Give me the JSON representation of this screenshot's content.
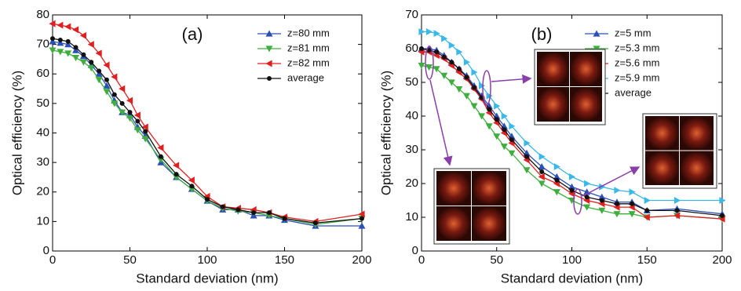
{
  "chart_data": [
    {
      "type": "line",
      "annotation": "(a)",
      "x_label": "Standard deviation (nm)",
      "y_label": "Optical efficiency (%)",
      "x": [
        0,
        5,
        10,
        15,
        20,
        25,
        30,
        35,
        40,
        45,
        50,
        55,
        60,
        70,
        80,
        90,
        100,
        110,
        120,
        130,
        140,
        150,
        170,
        200
      ],
      "xlim": [
        0,
        200
      ],
      "xticks": [
        0,
        50,
        100,
        150,
        200
      ],
      "ylim": [
        0,
        80
      ],
      "yticks": [
        0,
        10,
        20,
        30,
        40,
        50,
        60,
        70,
        80
      ],
      "legend": "upper right",
      "series": [
        {
          "name": "z=80 mm",
          "color": "#2a4fb8",
          "marker": "^",
          "values": [
            71,
            70.5,
            70,
            68,
            66,
            63,
            60,
            56,
            51,
            47,
            46,
            42,
            39,
            30,
            25,
            21,
            17,
            14,
            14,
            12,
            12,
            10.5,
            8.5,
            8.5
          ]
        },
        {
          "name": "z=81 mm",
          "color": "#3fae3f",
          "marker": "v",
          "values": [
            68,
            67.5,
            67,
            65.5,
            64,
            62,
            58,
            54,
            50,
            47,
            45,
            41,
            38,
            31,
            25,
            21,
            17,
            14.5,
            13.5,
            13,
            12,
            11,
            9,
            11
          ]
        },
        {
          "name": "z=82 mm",
          "color": "#e02020",
          "marker": "<",
          "values": [
            77,
            76.5,
            76,
            75,
            73,
            70,
            67,
            63,
            59,
            55,
            51,
            46,
            42,
            35,
            29,
            24,
            18.5,
            15,
            14.5,
            14,
            13,
            11.5,
            10,
            12.5
          ]
        },
        {
          "name": "average",
          "color": "#111111",
          "marker": "o",
          "values": [
            72,
            71.5,
            71,
            69,
            66.5,
            64,
            61,
            58,
            53,
            50,
            47,
            44,
            40.5,
            32,
            26,
            22,
            17.5,
            15,
            14,
            13,
            13,
            11,
            9.5,
            11
          ]
        }
      ]
    },
    {
      "type": "line",
      "annotation": "(b)",
      "x_label": "Standard deviation (nm)",
      "y_label": "Optical efficiency (%)",
      "x": [
        0,
        5,
        10,
        15,
        20,
        25,
        30,
        35,
        40,
        45,
        50,
        55,
        60,
        70,
        80,
        90,
        100,
        110,
        120,
        130,
        140,
        150,
        170,
        200
      ],
      "xlim": [
        0,
        200
      ],
      "xticks": [
        0,
        50,
        100,
        150,
        200
      ],
      "ylim": [
        0,
        70
      ],
      "yticks": [
        0,
        10,
        20,
        30,
        40,
        50,
        60,
        70
      ],
      "legend": "upper right",
      "series": [
        {
          "name": "z=5 mm",
          "color": "#2a4fb8",
          "marker": "^",
          "values": [
            60,
            60,
            59.5,
            58,
            56,
            54,
            52,
            49,
            46,
            43,
            40,
            37,
            34,
            29,
            25,
            22,
            19,
            17.5,
            16,
            14.5,
            14.5,
            12,
            12.5,
            11
          ]
        },
        {
          "name": "z=5.3 mm",
          "color": "#3fae3f",
          "marker": "v",
          "values": [
            55,
            54.5,
            54,
            52,
            50,
            48,
            46,
            43,
            40,
            37,
            34,
            31,
            29,
            24,
            20,
            17.5,
            15,
            13,
            12,
            11,
            11,
            10,
            10.5,
            9.5
          ]
        },
        {
          "name": "z=5.6 mm",
          "color": "#e02020",
          "marker": "<",
          "values": [
            59,
            59,
            58,
            57,
            55,
            53,
            51,
            48,
            45,
            41,
            38,
            35,
            32,
            27,
            22,
            20,
            17,
            15,
            14,
            13,
            13,
            10,
            10.5,
            9.5
          ]
        },
        {
          "name": "z=5.9 mm",
          "color": "#3ab8e8",
          "marker": ">",
          "values": [
            65,
            65,
            64.5,
            63,
            61,
            59,
            56,
            53,
            49,
            46,
            43,
            40,
            37,
            32,
            28,
            25,
            22,
            20,
            19,
            18,
            17.5,
            15,
            15,
            15
          ]
        },
        {
          "name": "average",
          "color": "#111111",
          "marker": "o",
          "values": [
            60,
            59.5,
            59,
            57.5,
            56,
            54,
            51.5,
            48.5,
            45.5,
            42,
            39,
            36,
            33,
            28,
            23.5,
            21,
            18,
            16,
            15,
            14,
            14,
            12,
            12,
            10.5
          ]
        }
      ]
    }
  ]
}
